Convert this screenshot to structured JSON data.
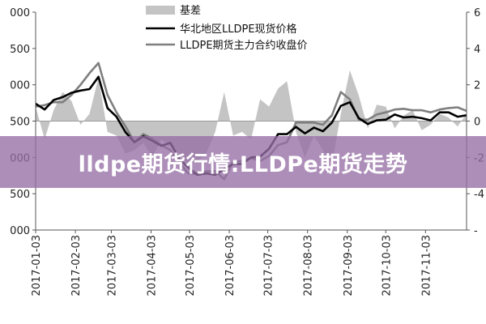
{
  "banner": {
    "text": "lldpe期货行情:LLDPe期货走势"
  },
  "chart_data": {
    "type": "line",
    "title": "",
    "xlabel": "",
    "ylabel": "",
    "grid": false,
    "legend_position": "top-center",
    "x": [
      "2017-01-03",
      "2017-01-10",
      "2017-01-17",
      "2017-01-24",
      "2017-01-31",
      "2017-02-07",
      "2017-02-14",
      "2017-02-21",
      "2017-02-28",
      "2017-03-07",
      "2017-03-14",
      "2017-03-21",
      "2017-03-28",
      "2017-04-04",
      "2017-04-11",
      "2017-04-18",
      "2017-04-25",
      "2017-05-02",
      "2017-05-09",
      "2017-05-16",
      "2017-05-23",
      "2017-05-30",
      "2017-06-06",
      "2017-06-13",
      "2017-06-20",
      "2017-06-27",
      "2017-07-04",
      "2017-07-11",
      "2017-07-18",
      "2017-07-25",
      "2017-08-01",
      "2017-08-08",
      "2017-08-15",
      "2017-08-22",
      "2017-08-29",
      "2017-09-05",
      "2017-09-12",
      "2017-09-19",
      "2017-09-26",
      "2017-10-03",
      "2017-10-10",
      "2017-10-17",
      "2017-10-24",
      "2017-10-31",
      "2017-11-07",
      "2017-11-14",
      "2017-11-21",
      "2017-11-28",
      "2017-12-05"
    ],
    "x_ticks": [
      "2017-01-03",
      "2017-02-03",
      "2017-03-03",
      "2017-04-03",
      "2017-05-03",
      "2017-06-03",
      "2017-07-03",
      "2017-08-03",
      "2017-09-03",
      "2017-10-03",
      "2017-11-03"
    ],
    "y_left": {
      "ylim": [
        8000,
        11000
      ],
      "ticks": [
        "8000",
        "8500",
        "9000",
        "9500",
        "10000",
        "10500",
        "11000"
      ],
      "tick_labels_visible": [
        "000",
        "500",
        "000",
        "500",
        "000",
        "500",
        "000"
      ]
    },
    "y_right": {
      "ylim": [
        -6,
        6
      ],
      "ticks": [
        "6",
        "4",
        "2",
        "0",
        "-2",
        "-4",
        "-6"
      ],
      "tick_labels_visible": [
        "6",
        "4",
        "2",
        "0",
        "-2",
        "-4",
        "-"
      ]
    },
    "series": [
      {
        "name": "基差",
        "type": "area",
        "axis": "right",
        "color": "#c4c4c4",
        "values": [
          0.8,
          -1.0,
          0.6,
          1.6,
          1.1,
          -0.2,
          0.4,
          2.4,
          -0.6,
          -0.8,
          -1.8,
          -1.6,
          -1.2,
          -2.0,
          -1.0,
          -1.4,
          -1.8,
          -2.4,
          -2.2,
          -1.8,
          -0.6,
          1.6,
          -0.8,
          -0.6,
          -1.0,
          1.2,
          0.8,
          1.8,
          2.2,
          -0.6,
          -2.0,
          -0.8,
          -1.6,
          -2.4,
          0.4,
          2.8,
          1.4,
          -0.4,
          0.9,
          0.8,
          -0.4,
          0.3,
          0.6,
          -0.5,
          -0.2,
          0.4,
          0.2,
          -0.3,
          0.4
        ]
      },
      {
        "name": "华北地区LLDPE现货价格",
        "type": "line",
        "axis": "left",
        "color": "#000000",
        "values": [
          9740,
          9660,
          9790,
          9830,
          9890,
          9920,
          9940,
          10110,
          9680,
          9560,
          9350,
          9210,
          9290,
          9230,
          9160,
          9200,
          8980,
          8860,
          8760,
          8780,
          8760,
          8840,
          8910,
          8910,
          9000,
          9010,
          9120,
          9320,
          9320,
          9420,
          9330,
          9410,
          9360,
          9480,
          9710,
          9760,
          9540,
          9460,
          9510,
          9520,
          9590,
          9550,
          9560,
          9540,
          9510,
          9620,
          9620,
          9560,
          9580
        ]
      },
      {
        "name": "LLDPE期货主力合约收盘价",
        "type": "line",
        "axis": "left",
        "color": "#7f7f7f",
        "values": [
          9700,
          9720,
          9760,
          9760,
          9860,
          10000,
          10160,
          10300,
          9860,
          9620,
          9430,
          9210,
          9320,
          9260,
          9170,
          9100,
          8930,
          8780,
          8770,
          8810,
          8810,
          8700,
          8940,
          8950,
          8990,
          8950,
          9020,
          9170,
          9210,
          9480,
          9480,
          9480,
          9450,
          9580,
          9900,
          9800,
          9520,
          9520,
          9590,
          9620,
          9660,
          9670,
          9650,
          9650,
          9620,
          9660,
          9680,
          9690,
          9640
        ]
      }
    ]
  }
}
